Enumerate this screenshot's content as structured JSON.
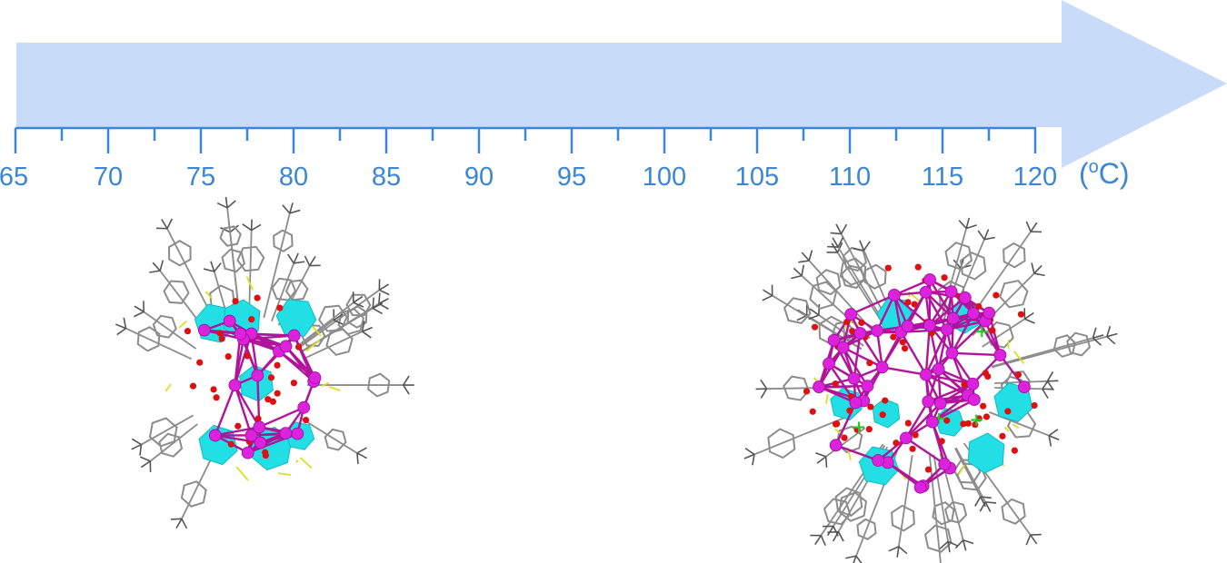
{
  "temperature_scale": {
    "start": 65,
    "end": 120,
    "major_step": 5,
    "minor_step": 2.5,
    "labels": [
      "65",
      "70",
      "75",
      "80",
      "85",
      "90",
      "95",
      "100",
      "105",
      "110",
      "115",
      "120"
    ],
    "unit_open": "(",
    "unit_degree": "o",
    "unit_letter": "C)"
  },
  "colors": {
    "arrow_fill": "#c8dcfa",
    "axis": "#3b86d6",
    "label": "#3b86d6",
    "polyhedra": "#22dfe6",
    "metal_atom": "#dd22dd",
    "metal_bond": "#b0149b",
    "oxygen_atom": "#dd1111",
    "sulfur_bond": "#dddd22",
    "carbon_bond": "#8c8c8c",
    "chloride": "#22cc22"
  },
  "structures": [
    {
      "name": "low-temperature cluster",
      "rendering": "ball-and-stick with polyhedra"
    },
    {
      "name": "high-temperature cluster",
      "rendering": "ball-and-stick with polyhedra"
    }
  ]
}
